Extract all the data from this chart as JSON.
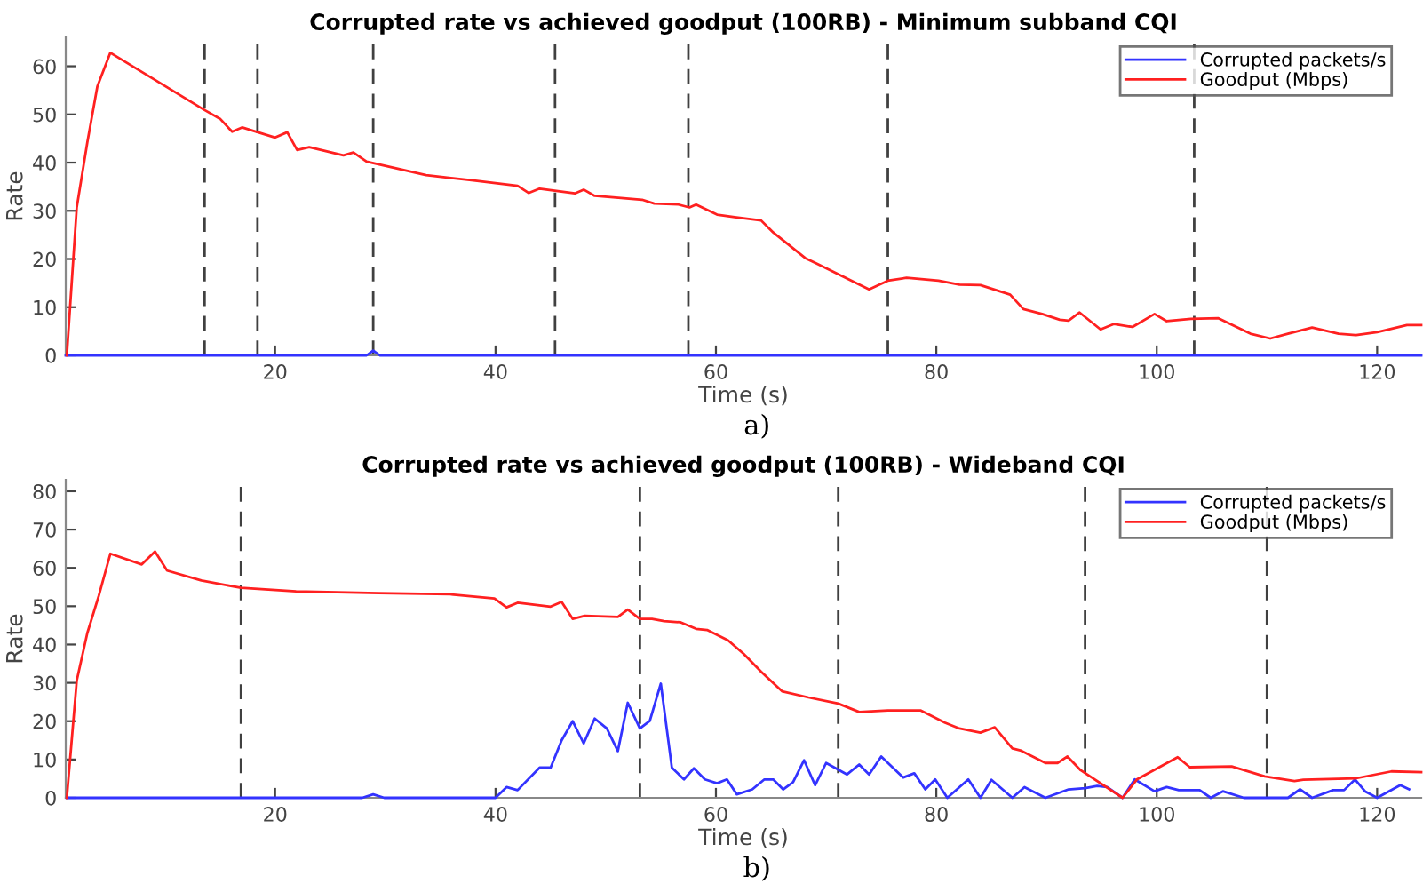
{
  "chart_data": [
    {
      "type": "line",
      "title": "Corrupted rate vs achieved goodput (100RB) - Minimum subband CQI",
      "xlabel": "Time (s)",
      "ylabel": "Rate",
      "xlim": [
        1,
        124
      ],
      "xticks": [
        20,
        40,
        60,
        80,
        100,
        120
      ],
      "ylim": [
        0,
        66
      ],
      "yticks": [
        0,
        10,
        20,
        30,
        40,
        50,
        60
      ],
      "grid": false,
      "legend": "top right",
      "line_style": "solid",
      "marker": "none",
      "series": [
        {
          "name": "Corrupted packets/s",
          "color": "#3333ff",
          "x": [
            1,
            28.3,
            28.9,
            29.5,
            124
          ],
          "values": [
            0,
            0,
            1,
            0,
            0
          ]
        },
        {
          "name": "Goodput (Mbps)",
          "color": "#ff2020",
          "x": [
            1.1,
            2.0,
            2.96,
            3.87,
            5.05,
            13.6,
            15.0,
            16.1,
            17.0,
            20.0,
            21.1,
            22.0,
            23.1,
            26.2,
            27.1,
            28.3,
            33.7,
            38.0,
            42.0,
            43.0,
            44.0,
            47.2,
            48.0,
            49.0,
            53.3,
            54.4,
            56.6,
            57.6,
            58.2,
            60.1,
            61.7,
            64.1,
            65.2,
            68.1,
            69.2,
            73.9,
            75.6,
            77.3,
            80.2,
            82.1,
            84.0,
            86.7,
            87.9,
            89.6,
            91.2,
            92.0,
            93.0,
            94.9,
            96.1,
            97.8,
            99.8,
            100.9,
            103.1,
            105.6,
            108.5,
            110.3,
            111.9,
            114.1,
            116.5,
            118.1,
            120.0,
            122.7,
            124.0
          ],
          "values": [
            0,
            30.7,
            44.2,
            55.8,
            62.8,
            50.9,
            49.1,
            46.4,
            47.3,
            45.2,
            46.3,
            42.6,
            43.2,
            41.5,
            42.1,
            40.2,
            37.4,
            36.3,
            35.2,
            33.7,
            34.6,
            33.6,
            34.4,
            33.1,
            32.3,
            31.5,
            31.3,
            30.7,
            31.3,
            29.2,
            28.7,
            28.0,
            25.5,
            20.2,
            19.0,
            13.7,
            15.5,
            16.1,
            15.5,
            14.7,
            14.6,
            12.6,
            9.6,
            8.6,
            7.4,
            7.2,
            8.9,
            5.4,
            6.5,
            5.9,
            8.6,
            7.1,
            7.6,
            7.7,
            4.5,
            3.5,
            4.5,
            5.8,
            4.5,
            4.2,
            4.8,
            6.3,
            6.3
          ]
        }
      ],
      "ref_lines": [
        {
          "axis": "x",
          "value": 13.6,
          "color": "#404040",
          "line_style": "dashed"
        },
        {
          "axis": "x",
          "value": 18.4,
          "color": "#404040",
          "line_style": "dashed"
        },
        {
          "axis": "x",
          "value": 28.9,
          "color": "#404040",
          "line_style": "dashed"
        },
        {
          "axis": "x",
          "value": 45.4,
          "color": "#404040",
          "line_style": "dashed"
        },
        {
          "axis": "x",
          "value": 57.5,
          "color": "#404040",
          "line_style": "dashed"
        },
        {
          "axis": "x",
          "value": 75.6,
          "color": "#404040",
          "line_style": "dashed"
        },
        {
          "axis": "x",
          "value": 103.4,
          "color": "#404040",
          "line_style": "dashed"
        }
      ],
      "annotations": [
        "a)"
      ]
    },
    {
      "type": "line",
      "title": "Corrupted rate vs achieved goodput (100RB) - Wideband CQI",
      "xlabel": "Time (s)",
      "ylabel": "Rate",
      "xlim": [
        1,
        124
      ],
      "xticks": [
        20,
        40,
        60,
        80,
        100,
        120
      ],
      "ylim": [
        0,
        83
      ],
      "yticks": [
        0,
        10,
        20,
        30,
        40,
        50,
        60,
        70,
        80
      ],
      "grid": false,
      "legend": "top right",
      "line_style": "solid",
      "marker": "none",
      "series": [
        {
          "name": "Corrupted packets/s",
          "color": "#3333ff",
          "x": [
            1.1,
            27.9,
            28.9,
            29.9,
            40.0,
            41.0,
            42.0,
            44.0,
            45.0,
            46.0,
            47.0,
            48.0,
            49.0,
            50.1,
            51.1,
            52.0,
            53.1,
            54.0,
            55.0,
            56.0,
            57.1,
            58.0,
            59.0,
            60.1,
            61.0,
            61.9,
            63.3,
            64.4,
            65.2,
            66.1,
            67.0,
            68.0,
            69.0,
            70.0,
            71.9,
            73.0,
            73.9,
            75.0,
            77.0,
            78.0,
            79.0,
            79.9,
            81.0,
            82.9,
            84.0,
            85.0,
            86.9,
            88.0,
            89.9,
            92.0,
            93.5,
            94.6,
            95.5,
            96.9,
            98.0,
            99.8,
            100.9,
            102.0,
            103.9,
            104.9,
            106.0,
            107.9,
            111.9,
            113.0,
            114.1,
            116.0,
            117.0,
            118.0,
            118.9,
            120.0,
            122.1,
            122.9
          ],
          "values": [
            0,
            0,
            0.9,
            0,
            0,
            2.8,
            2.0,
            7.9,
            7.9,
            15.0,
            20.0,
            14.2,
            20.7,
            18.1,
            12.2,
            24.8,
            18.1,
            20.1,
            29.8,
            7.9,
            4.8,
            7.7,
            4.8,
            3.8,
            4.8,
            0.9,
            2.2,
            4.8,
            4.8,
            2.2,
            4.1,
            9.8,
            3.3,
            9.1,
            6.1,
            8.7,
            6.1,
            10.8,
            5.3,
            6.4,
            2.2,
            4.8,
            0,
            4.8,
            0,
            4.7,
            0,
            2.8,
            0,
            2.2,
            2.5,
            3.1,
            2.8,
            0,
            4.8,
            1.7,
            2.8,
            2.0,
            2.0,
            0,
            1.7,
            0,
            0,
            2.2,
            0,
            2.0,
            2.0,
            4.8,
            1.7,
            0,
            3.3,
            2.2
          ]
        },
        {
          "name": "Goodput (Mbps)",
          "color": "#ff2020",
          "x": [
            1.1,
            2.0,
            2.96,
            4.0,
            5.05,
            7.9,
            9.1,
            10.2,
            13.3,
            16.9,
            21.9,
            29.4,
            35.9,
            39.9,
            41.0,
            42.0,
            45.0,
            46.0,
            47.0,
            48.1,
            51.1,
            52.0,
            53.1,
            54.2,
            55.3,
            56.8,
            58.2,
            59.2,
            61.1,
            62.5,
            64.1,
            66.0,
            68.4,
            71.1,
            73.0,
            75.6,
            78.6,
            80.8,
            82.1,
            84.0,
            85.3,
            86.9,
            87.7,
            89.9,
            91.0,
            91.9,
            93.1,
            96.9,
            98.2,
            101.9,
            103.0,
            106.8,
            109.8,
            112.5,
            113.3,
            118.1,
            121.3,
            124.0
          ],
          "values": [
            0,
            30.6,
            43.0,
            52.7,
            63.7,
            60.9,
            64.3,
            59.3,
            56.7,
            54.8,
            53.9,
            53.4,
            53.1,
            52.0,
            49.7,
            50.9,
            49.9,
            51.1,
            46.7,
            47.5,
            47.2,
            49.1,
            46.7,
            46.7,
            46.1,
            45.8,
            44.1,
            43.8,
            41.1,
            37.6,
            32.9,
            27.8,
            26.2,
            24.6,
            22.4,
            22.8,
            22.8,
            19.6,
            18.1,
            17.0,
            18.4,
            12.9,
            12.3,
            9.1,
            9.1,
            10.8,
            7.2,
            0,
            4.8,
            10.6,
            8.0,
            8.2,
            5.6,
            4.4,
            4.7,
            5.1,
            6.9,
            6.7
          ]
        }
      ],
      "ref_lines": [
        {
          "axis": "x",
          "value": 16.9,
          "color": "#404040",
          "line_style": "dashed"
        },
        {
          "axis": "x",
          "value": 53.1,
          "color": "#404040",
          "line_style": "dashed"
        },
        {
          "axis": "x",
          "value": 71.1,
          "color": "#404040",
          "line_style": "dashed"
        },
        {
          "axis": "x",
          "value": 93.5,
          "color": "#404040",
          "line_style": "dashed"
        },
        {
          "axis": "x",
          "value": 110.0,
          "color": "#404040",
          "line_style": "dashed"
        }
      ],
      "annotations": [
        "b)"
      ]
    }
  ]
}
